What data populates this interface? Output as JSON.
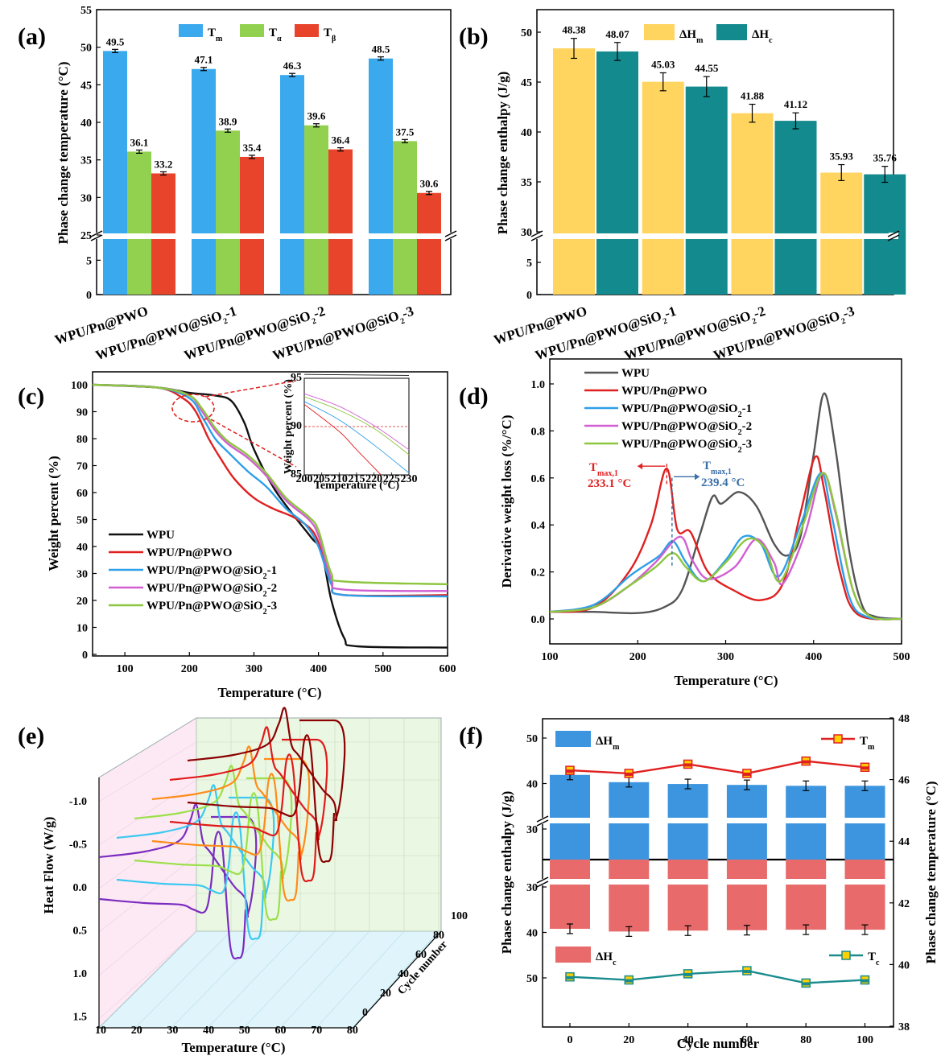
{
  "chart_data": [
    {
      "panel": "(a)",
      "type": "bar",
      "categories": [
        "WPU/Pn@PWO",
        "WPU/Pn@PWO@SiO₂-1",
        "WPU/Pn@PWO@SiO₂-2",
        "WPU/Pn@PWO@SiO₂-3"
      ],
      "series": [
        {
          "name": "Tm",
          "values": [
            49.5,
            47.1,
            46.3,
            48.5
          ],
          "color": "#3aa9ee"
        },
        {
          "name": "Tα",
          "values": [
            36.1,
            38.9,
            39.6,
            37.5
          ],
          "color": "#92d050"
        },
        {
          "name": "Tβ",
          "values": [
            33.2,
            35.4,
            36.4,
            30.6
          ],
          "color": "#e8442b"
        }
      ],
      "ylabel": "Phase change temperature (°C)",
      "ylim_upper": [
        25,
        55
      ],
      "ylim_lower": [
        0,
        10
      ],
      "yticks_upper": [
        "25",
        "30",
        "35",
        "40",
        "45",
        "50",
        "55"
      ],
      "yticks_lower": [
        "0",
        "5"
      ],
      "legend": "top-center",
      "axis_break": true
    },
    {
      "panel": "(b)",
      "type": "bar",
      "categories": [
        "WPU/Pn@PWO",
        "WPU/Pn@PWO@SiO₂-1",
        "WPU/Pn@PWO@SiO₂-2",
        "WPU/Pn@PWO@SiO₂-3"
      ],
      "series": [
        {
          "name": "ΔHm",
          "values": [
            48.38,
            45.03,
            41.88,
            35.93
          ],
          "color": "#ffd45f"
        },
        {
          "name": "ΔHc",
          "values": [
            48.07,
            44.55,
            41.12,
            35.76
          ],
          "color": "#138a8d"
        }
      ],
      "ylabel": "Phase change enthalpy (J/g)",
      "ylim_upper": [
        30,
        52
      ],
      "ylim_lower": [
        0,
        10
      ],
      "yticks_upper": [
        "30",
        "35",
        "40",
        "45",
        "50"
      ],
      "yticks_lower": [
        "0",
        "5"
      ],
      "legend": "top-right",
      "axis_break": true
    },
    {
      "panel": "(c)",
      "type": "line",
      "xlabel": "Temperature (°C)",
      "ylabel": "Weight percent (%)",
      "xlim": [
        50,
        600
      ],
      "ylim": [
        0,
        105
      ],
      "xticks": [
        "100",
        "200",
        "300",
        "400",
        "500",
        "600"
      ],
      "yticks": [
        "0",
        "10",
        "20",
        "30",
        "40",
        "50",
        "60",
        "70",
        "80",
        "90",
        "100"
      ],
      "series": [
        {
          "name": "WPU",
          "color": "#111111",
          "points": [
            [
              50,
              100
            ],
            [
              150,
              99
            ],
            [
              200,
              97
            ],
            [
              240,
              96
            ],
            [
              265,
              94
            ],
            [
              285,
              86
            ],
            [
              300,
              76
            ],
            [
              330,
              62
            ],
            [
              360,
              52
            ],
            [
              390,
              43
            ],
            [
              405,
              38
            ],
            [
              420,
              20
            ],
            [
              440,
              6
            ],
            [
              460,
              3
            ],
            [
              600,
              2.5
            ]
          ]
        },
        {
          "name": "WPU/Pn@PWO",
          "color": "#e02020",
          "points": [
            [
              50,
              100
            ],
            [
              150,
              99
            ],
            [
              190,
              95
            ],
            [
              210,
              90
            ],
            [
              230,
              80
            ],
            [
              250,
              72
            ],
            [
              270,
              65
            ],
            [
              300,
              58
            ],
            [
              330,
              54
            ],
            [
              360,
              51
            ],
            [
              390,
              46
            ],
            [
              405,
              38
            ],
            [
              420,
              26
            ],
            [
              440,
              22
            ],
            [
              600,
              22
            ]
          ]
        },
        {
          "name": "WPU/Pn@PWO@SiO₂-1",
          "color": "#2e9fe8",
          "points": [
            [
              50,
              100
            ],
            [
              150,
              99
            ],
            [
              200,
              95
            ],
            [
              220,
              88
            ],
            [
              240,
              80
            ],
            [
              260,
              75
            ],
            [
              290,
              68
            ],
            [
              320,
              62
            ],
            [
              350,
              54
            ],
            [
              380,
              48
            ],
            [
              400,
              40
            ],
            [
              420,
              26
            ],
            [
              440,
              22
            ],
            [
              600,
              21.5
            ]
          ]
        },
        {
          "name": "WPU/Pn@PWO@SiO₂-2",
          "color": "#d15fd1",
          "points": [
            [
              50,
              100
            ],
            [
              150,
              99
            ],
            [
              200,
              96
            ],
            [
              220,
              90
            ],
            [
              240,
              83
            ],
            [
              260,
              78
            ],
            [
              290,
              73
            ],
            [
              320,
              66
            ],
            [
              350,
              57
            ],
            [
              385,
              50
            ],
            [
              400,
              44
            ],
            [
              420,
              28
            ],
            [
              440,
              24
            ],
            [
              600,
              23.5
            ]
          ]
        },
        {
          "name": "WPU/Pn@PWO@SiO₂-3",
          "color": "#8dc63f",
          "points": [
            [
              50,
              100
            ],
            [
              150,
              99
            ],
            [
              200,
              96
            ],
            [
              220,
              91
            ],
            [
              240,
              84
            ],
            [
              260,
              79
            ],
            [
              290,
              74
            ],
            [
              320,
              67
            ],
            [
              350,
              58
            ],
            [
              385,
              51
            ],
            [
              400,
              46
            ],
            [
              420,
              30
            ],
            [
              440,
              27
            ],
            [
              600,
              26
            ]
          ]
        }
      ],
      "inset": {
        "xlim": [
          200,
          230
        ],
        "ylim": [
          85,
          95
        ],
        "xticks": [
          "200",
          "205",
          "210",
          "215",
          "220",
          "225",
          "230"
        ],
        "yticks": [
          "85",
          "90",
          "95"
        ],
        "xlabel": "Temperature (°C)",
        "ylabel": "Weight percent (%)"
      },
      "legend": "bottom-left"
    },
    {
      "panel": "(d)",
      "type": "line",
      "xlabel": "Temperature (°C)",
      "ylabel": "Derivative weight loss (%/°C)",
      "xlim": [
        100,
        500
      ],
      "ylim": [
        -0.1,
        1.05
      ],
      "xticks": [
        "100",
        "200",
        "300",
        "400",
        "500"
      ],
      "yticks": [
        "0.0",
        "0.2",
        "0.4",
        "0.6",
        "0.8",
        "1.0"
      ],
      "series": [
        {
          "name": "WPU",
          "color": "#555555",
          "points": [
            [
              100,
              0.03
            ],
            [
              150,
              0.03
            ],
            [
              200,
              0.025
            ],
            [
              230,
              0.05
            ],
            [
              250,
              0.12
            ],
            [
              270,
              0.35
            ],
            [
              285,
              0.52
            ],
            [
              295,
              0.49
            ],
            [
              315,
              0.54
            ],
            [
              335,
              0.48
            ],
            [
              355,
              0.32
            ],
            [
              370,
              0.27
            ],
            [
              385,
              0.35
            ],
            [
              400,
              0.7
            ],
            [
              412,
              0.96
            ],
            [
              425,
              0.72
            ],
            [
              440,
              0.3
            ],
            [
              455,
              0.06
            ],
            [
              470,
              0.01
            ],
            [
              500,
              0.0
            ]
          ]
        },
        {
          "name": "WPU/Pn@PWO",
          "color": "#e02020",
          "points": [
            [
              100,
              0.03
            ],
            [
              150,
              0.05
            ],
            [
              190,
              0.2
            ],
            [
              215,
              0.4
            ],
            [
              233,
              0.64
            ],
            [
              245,
              0.38
            ],
            [
              260,
              0.37
            ],
            [
              280,
              0.2
            ],
            [
              310,
              0.12
            ],
            [
              340,
              0.08
            ],
            [
              365,
              0.15
            ],
            [
              385,
              0.45
            ],
            [
              402,
              0.69
            ],
            [
              412,
              0.55
            ],
            [
              430,
              0.2
            ],
            [
              450,
              0.02
            ],
            [
              500,
              0.0
            ]
          ]
        },
        {
          "name": "WPU/Pn@PWO@SiO₂-1",
          "color": "#2e9fe8",
          "points": [
            [
              100,
              0.03
            ],
            [
              150,
              0.06
            ],
            [
              190,
              0.18
            ],
            [
              205,
              0.22
            ],
            [
              225,
              0.27
            ],
            [
              240,
              0.33
            ],
            [
              255,
              0.24
            ],
            [
              275,
              0.16
            ],
            [
              300,
              0.25
            ],
            [
              320,
              0.35
            ],
            [
              340,
              0.32
            ],
            [
              360,
              0.18
            ],
            [
              385,
              0.4
            ],
            [
              408,
              0.62
            ],
            [
              420,
              0.45
            ],
            [
              440,
              0.1
            ],
            [
              460,
              0.01
            ],
            [
              500,
              0.0
            ]
          ]
        },
        {
          "name": "WPU/Pn@PWO@SiO₂-2",
          "color": "#d15fd1",
          "points": [
            [
              100,
              0.03
            ],
            [
              150,
              0.05
            ],
            [
              190,
              0.14
            ],
            [
              220,
              0.24
            ],
            [
              248,
              0.35
            ],
            [
              262,
              0.25
            ],
            [
              280,
              0.17
            ],
            [
              310,
              0.22
            ],
            [
              335,
              0.34
            ],
            [
              355,
              0.24
            ],
            [
              365,
              0.15
            ],
            [
              390,
              0.36
            ],
            [
              410,
              0.62
            ],
            [
              425,
              0.45
            ],
            [
              445,
              0.12
            ],
            [
              465,
              0.01
            ],
            [
              500,
              0.0
            ]
          ]
        },
        {
          "name": "WPU/Pn@PWO@SiO₂-3",
          "color": "#8dc63f",
          "points": [
            [
              100,
              0.03
            ],
            [
              150,
              0.05
            ],
            [
              190,
              0.14
            ],
            [
              220,
              0.22
            ],
            [
              240,
              0.28
            ],
            [
              255,
              0.22
            ],
            [
              275,
              0.16
            ],
            [
              300,
              0.24
            ],
            [
              325,
              0.34
            ],
            [
              345,
              0.3
            ],
            [
              362,
              0.16
            ],
            [
              388,
              0.4
            ],
            [
              410,
              0.62
            ],
            [
              425,
              0.46
            ],
            [
              445,
              0.12
            ],
            [
              465,
              0.01
            ],
            [
              500,
              0.0
            ]
          ]
        }
      ],
      "annotations": [
        {
          "label": "T",
          "sub": "max,1",
          "value": "233.1 °C",
          "color": "#e02020"
        },
        {
          "label": "T",
          "sub": "max,1",
          "value": "239.4 °C",
          "color": "#3a6fa8"
        }
      ],
      "legend": "top-left"
    },
    {
      "panel": "(e)",
      "type": "line",
      "xlabel": "Temperature (°C)",
      "ylabel": "Heat Flow (W/g)",
      "zlabel": "Cycle number",
      "xticks": [
        "10",
        "20",
        "30",
        "40",
        "50",
        "60",
        "70",
        "80"
      ],
      "yticks": [
        "-1.0",
        "-0.5",
        "0.0",
        "0.5",
        "1.0",
        "1.5"
      ],
      "zticks": [
        "0",
        "20",
        "40",
        "60",
        "80",
        "100"
      ],
      "series_colors": [
        "#7b2cbf",
        "#3cc8f0",
        "#9be04a",
        "#ff8c1a",
        "#e01b1b",
        "#8b0000"
      ]
    },
    {
      "panel": "(f)",
      "type": "bar",
      "xlabel": "Cycle number",
      "ylabel_left": "Phase change enthalpy (J/g)",
      "ylabel_right": "Phase change temperature (°C)",
      "categories": [
        "0",
        "20",
        "40",
        "60",
        "80",
        "100"
      ],
      "series": [
        {
          "name": "ΔHm",
          "values": [
            41.9,
            40.3,
            39.9,
            39.7,
            39.5,
            39.5
          ],
          "color": "#3c95de"
        },
        {
          "name": "ΔHc",
          "values": [
            39.2,
            39.8,
            39.6,
            39.5,
            39.4,
            39.4
          ],
          "color": "#e86a6a"
        },
        {
          "name": "Tm",
          "values": [
            46.3,
            46.2,
            46.5,
            46.2,
            46.6,
            46.4
          ],
          "color": "#e02020"
        },
        {
          "name": "Tc",
          "values": [
            39.6,
            39.5,
            39.7,
            39.8,
            39.4,
            39.5
          ],
          "color": "#1a8c8e"
        }
      ],
      "yticks_left_top": [
        "30",
        "40",
        "50"
      ],
      "yticks_left_bottom": [
        "30",
        "40",
        "50"
      ],
      "yticks_right": [
        "38",
        "40",
        "42",
        "44",
        "46",
        "48"
      ],
      "ylim_right": [
        38,
        48
      ]
    }
  ],
  "labels": {
    "a": "(a)",
    "b": "(b)",
    "c": "(c)",
    "d": "(d)",
    "e": "(e)",
    "f": "(f)",
    "a_ylabel": "Phase change temperature (°C)",
    "b_ylabel": "Phase change enthalpy (J/g)",
    "c_xlabel": "Temperature (°C)",
    "c_ylabel": "Weight percent (%)",
    "d_xlabel": "Temperature (°C)",
    "d_ylabel": "Derivative weight loss (%/°C)",
    "e_xlabel": "Temperature (°C)",
    "e_ylabel": "Heat Flow (W/g)",
    "e_zlabel": "Cycle number",
    "f_xlabel": "Cycle number",
    "f_ylabel_left": "Phase change enthalpy (J/g)",
    "f_ylabel_right": "Phase change temperature (°C)",
    "leg_a": [
      "T",
      "m",
      "T",
      "α",
      "T",
      "β"
    ],
    "leg_b": [
      "ΔH",
      "m",
      "ΔH",
      "c"
    ],
    "leg_f": [
      "ΔH",
      "m",
      "T",
      "m",
      "ΔH",
      "c",
      "T",
      "c"
    ],
    "cats": [
      [
        "WPU/Pn@PWO",
        ""
      ],
      [
        "WPU/Pn@PWO@SiO",
        "2",
        "-1"
      ],
      [
        "WPU/Pn@PWO@SiO",
        "2",
        "-2"
      ],
      [
        "WPU/Pn@PWO@SiO",
        "2",
        "-3"
      ]
    ],
    "legend_lines": [
      [
        "WPU"
      ],
      [
        "WPU/Pn@PWO"
      ],
      [
        "WPU/Pn@PWO@SiO",
        "2",
        "-1"
      ],
      [
        "WPU/Pn@PWO@SiO",
        "2",
        "-2"
      ],
      [
        "WPU/Pn@PWO@SiO",
        "2",
        "-3"
      ]
    ],
    "ann_d": {
      "t": "T",
      "s": "max,1",
      "v1": "233.1 °C",
      "v2": "239.4 °C"
    }
  }
}
